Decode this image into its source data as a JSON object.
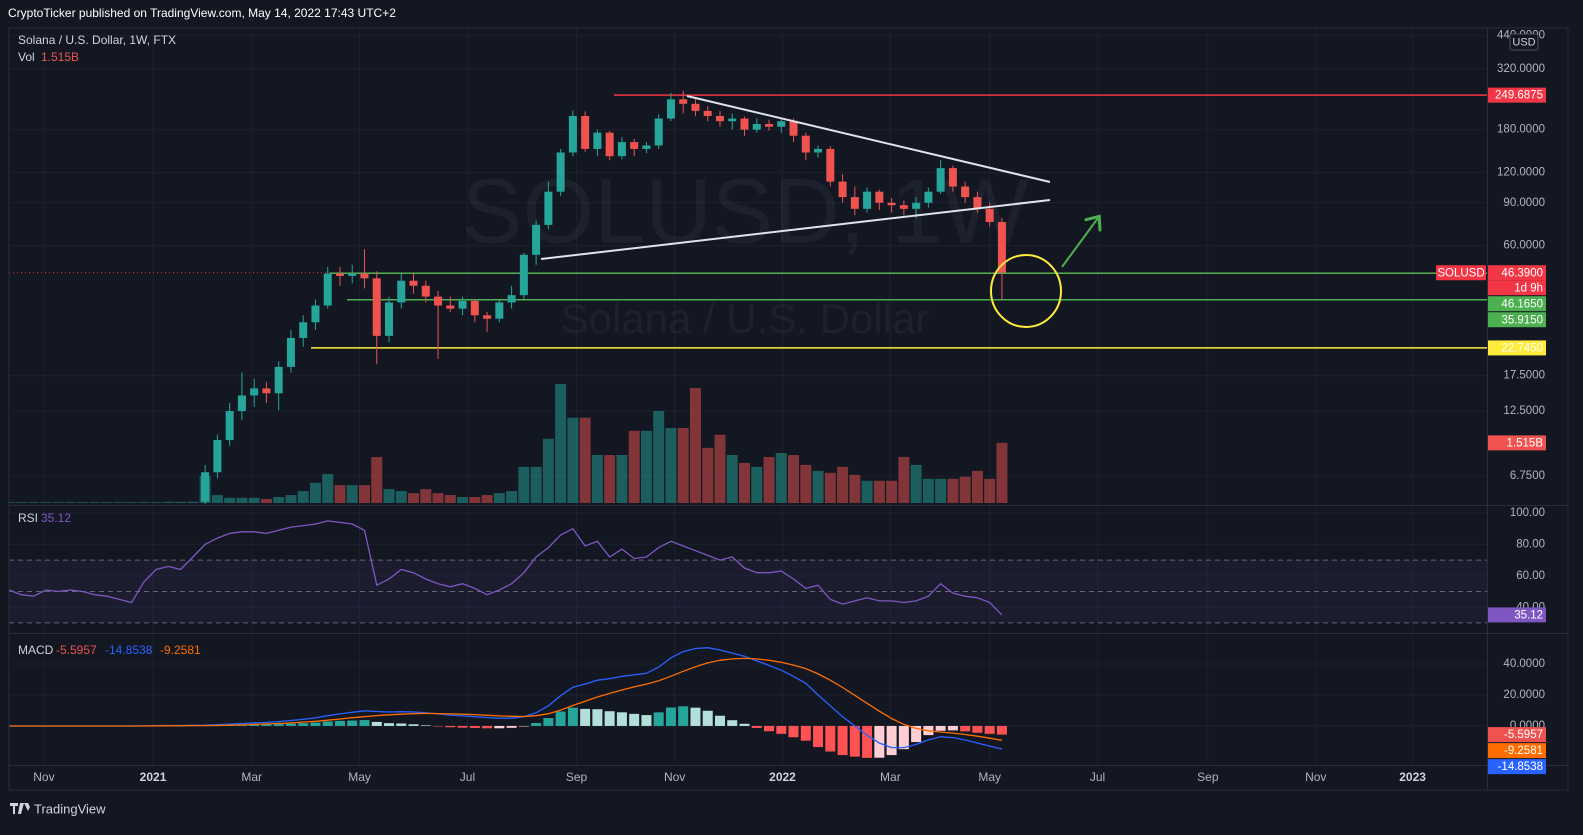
{
  "header": {
    "publisher": "CryptoTicker published on TradingView.com, May 14, 2022 17:43 UTC+2",
    "logo": "TradingView"
  },
  "chart_data": [
    {
      "type": "candlestick",
      "title": "Solana / U.S. Dollar, 1W, FTX",
      "watermark": "SOLUSD, 1W",
      "watermark_subtitle": "Solana / U.S. Dollar",
      "currency": "USD",
      "log_scale": true,
      "grid": true,
      "xlim": [
        0,
        120
      ],
      "xticks": [
        {
          "value": 2.85,
          "label": "Nov"
        },
        {
          "value": 11.75,
          "label": "2021"
        },
        {
          "value": 19.8,
          "label": "Mar"
        },
        {
          "value": 28.6,
          "label": "May"
        },
        {
          "value": 37.4,
          "label": "Jul"
        },
        {
          "value": 46.3,
          "label": "Sep"
        },
        {
          "value": 54.3,
          "label": "Nov"
        },
        {
          "value": 63.1,
          "label": "2022"
        },
        {
          "value": 71.9,
          "label": "Mar"
        },
        {
          "value": 80.0,
          "label": "May"
        },
        {
          "value": 88.8,
          "label": "Jul"
        },
        {
          "value": 97.8,
          "label": "Sep"
        },
        {
          "value": 106.6,
          "label": "Nov"
        },
        {
          "value": 114.5,
          "label": "2023"
        }
      ],
      "ylim": [
        5.23,
        463
      ],
      "yticks": [
        {
          "value": 440,
          "label": "440.0000"
        },
        {
          "value": 320,
          "label": "320.0000"
        },
        {
          "value": 180,
          "label": "180.0000"
        },
        {
          "value": 120,
          "label": "120.0000"
        },
        {
          "value": 90,
          "label": "90.0000"
        },
        {
          "value": 60,
          "label": "60.0000"
        },
        {
          "value": 17.5,
          "label": "17.5000"
        },
        {
          "value": 12.5,
          "label": "12.5000"
        },
        {
          "value": 6.75,
          "label": "6.7500"
        }
      ],
      "up_color": "#26a69a",
      "down_color": "#ef5350",
      "open": [
        null,
        null,
        null,
        null,
        null,
        null,
        null,
        null,
        null,
        null,
        null,
        null,
        null,
        null,
        null,
        null,
        5.3,
        7.0,
        9.5,
        12.5,
        14.5,
        15.5,
        14.8,
        19,
        25,
        29,
        34,
        46,
        45,
        46,
        44,
        25.5,
        35,
        43,
        41,
        37,
        34,
        33,
        35.5,
        31,
        30,
        35,
        37.5,
        55,
        73,
        100,
        145,
        205,
        150,
        175,
        140,
        160,
        150,
        155,
        200,
        240,
        230,
        215,
        205,
        195,
        200,
        180,
        190,
        185,
        195,
        170,
        145,
        150,
        110,
        95,
        85,
        100,
        90,
        88,
        85,
        90,
        100,
        125,
        105,
        95,
        85,
        75
      ],
      "high": [
        null,
        null,
        null,
        null,
        null,
        null,
        null,
        null,
        null,
        null,
        null,
        null,
        null,
        null,
        null,
        null,
        7.5,
        10,
        13.5,
        18,
        17,
        16.5,
        20,
        27,
        31,
        36,
        49,
        49,
        50,
        58,
        47,
        37,
        46,
        46,
        43,
        39,
        37,
        37,
        36,
        32,
        36,
        41,
        56,
        76,
        110,
        150,
        216,
        214,
        180,
        178,
        168,
        165,
        160,
        208,
        255,
        260,
        240,
        225,
        215,
        210,
        204,
        200,
        198,
        202,
        200,
        175,
        155,
        154,
        118,
        105,
        104,
        102,
        94,
        92,
        95,
        104,
        135,
        128,
        110,
        100,
        90,
        78
      ],
      "low": [
        null,
        null,
        null,
        null,
        null,
        null,
        null,
        null,
        null,
        null,
        null,
        null,
        null,
        null,
        null,
        null,
        5.0,
        6.6,
        9,
        11.5,
        13,
        13.5,
        12.6,
        18,
        23,
        27,
        33,
        41,
        42,
        40,
        19.5,
        24,
        33,
        38,
        35,
        20.5,
        32,
        31,
        29,
        26.5,
        29,
        33,
        36,
        50,
        70,
        96,
        140,
        146,
        140,
        135,
        136,
        140,
        144,
        150,
        195,
        210,
        205,
        195,
        185,
        180,
        170,
        175,
        178,
        175,
        160,
        135,
        138,
        105,
        90,
        80,
        82,
        84,
        82,
        80,
        78,
        86,
        98,
        100,
        90,
        82,
        72,
        36
      ],
      "close": [
        null,
        null,
        null,
        null,
        null,
        null,
        null,
        null,
        null,
        null,
        null,
        null,
        null,
        null,
        null,
        null,
        7.0,
        9.5,
        12.5,
        14.5,
        15.5,
        14.8,
        19,
        25,
        29,
        34,
        46,
        45,
        46,
        44,
        25.5,
        35,
        43,
        41,
        37,
        34,
        33,
        35.5,
        31,
        30,
        35,
        37.5,
        55,
        73,
        100,
        145,
        205,
        150,
        175,
        140,
        160,
        150,
        155,
        200,
        240,
        230,
        215,
        205,
        195,
        200,
        180,
        190,
        185,
        195,
        170,
        145,
        150,
        110,
        95,
        85,
        100,
        90,
        88,
        85,
        90,
        100,
        125,
        105,
        95,
        85,
        75,
        46.39
      ],
      "last_price": {
        "symbol": "SOLUSD",
        "value": 46.39,
        "label": "46.3900",
        "countdown": "1d 9h",
        "color": "#f23645"
      },
      "levels": [
        {
          "value": 249.6875,
          "label": "249.6875",
          "color": "#f23645"
        },
        {
          "value": 46.165,
          "label": "46.1650",
          "color": "#4caf50"
        },
        {
          "value": 35.915,
          "label": "35.9150",
          "color": "#4caf50"
        },
        {
          "value": 22.745,
          "label": "22.7450",
          "color": "#ffeb3b"
        }
      ],
      "volume": {
        "name": "Vol",
        "values": [
          0.02,
          0.02,
          0.02,
          0.02,
          0.02,
          0.02,
          0.02,
          0.02,
          0.02,
          0.02,
          0.02,
          0.02,
          0.02,
          0.03,
          0.03,
          0.03,
          0.68,
          0.2,
          0.13,
          0.13,
          0.13,
          0.1,
          0.15,
          0.2,
          0.3,
          0.51,
          0.73,
          0.45,
          0.45,
          0.45,
          1.16,
          0.35,
          0.3,
          0.25,
          0.35,
          0.25,
          0.2,
          0.15,
          0.15,
          0.2,
          0.25,
          0.3,
          0.91,
          0.91,
          1.62,
          3.0,
          2.15,
          2.15,
          1.21,
          1.21,
          1.21,
          1.82,
          1.82,
          2.32,
          1.89,
          1.89,
          2.9,
          1.39,
          1.72,
          1.21,
          1.01,
          0.91,
          1.16,
          1.26,
          1.21,
          0.96,
          0.81,
          0.76,
          0.91,
          0.71,
          0.56,
          0.56,
          0.56,
          1.16,
          0.96,
          0.61,
          0.61,
          0.61,
          0.66,
          0.81,
          0.61,
          1.515
        ],
        "last_label": "1.515B"
      }
    },
    {
      "type": "line",
      "name": "RSI",
      "color": "#7e57c2",
      "grid": true,
      "ylim": [
        25.5,
        100
      ],
      "yticks": [
        {
          "value": 100,
          "label": "100.00"
        },
        {
          "value": 80,
          "label": "80.00"
        },
        {
          "value": 60,
          "label": "60.00"
        },
        {
          "value": 40,
          "label": "40.00"
        }
      ],
      "band_lines": [
        70,
        50,
        30
      ],
      "values": [
        51,
        48,
        47,
        51,
        50,
        51,
        50,
        48,
        47,
        45,
        43,
        56,
        64,
        66,
        64,
        72,
        80,
        84,
        87,
        88,
        88,
        87,
        89,
        91,
        92,
        93,
        95,
        94,
        93,
        89,
        54,
        58,
        64,
        62,
        58,
        55,
        53,
        55,
        52,
        48,
        51,
        55,
        62,
        72,
        78,
        86,
        90,
        79,
        82,
        72,
        77,
        71,
        72,
        78,
        82,
        79,
        76,
        73,
        70,
        72,
        65,
        62,
        62,
        63,
        58,
        52,
        54,
        45,
        42,
        44,
        46,
        44,
        44,
        43,
        44,
        47,
        55,
        49,
        47,
        46,
        43,
        35.12
      ]
    },
    {
      "type": "macd",
      "name": "MACD",
      "grid": true,
      "ylim": [
        -25.2,
        58.7
      ],
      "yticks": [
        {
          "value": 40,
          "label": "40.0000"
        },
        {
          "value": 20,
          "label": "20.0000"
        },
        {
          "value": 0,
          "label": "0.0000"
        }
      ],
      "histogram": {
        "colors": [
          "#26a69a",
          "#b2dfdb",
          "#ffcdd2",
          "#ff5252"
        ],
        "values": [
          0,
          0,
          0,
          0,
          0,
          0,
          0,
          0,
          0,
          0,
          0,
          0.1,
          0.1,
          0.2,
          0.1,
          0.2,
          0.3,
          0.5,
          0.7,
          0.9,
          1.0,
          1.0,
          1.2,
          1.5,
          1.8,
          2.2,
          2.9,
          3.3,
          3.5,
          3.8,
          2.6,
          1.8,
          1.6,
          1.1,
          0.4,
          -0.2,
          -0.8,
          -1.1,
          -1.3,
          -1.5,
          -1.5,
          -1.2,
          -0.1,
          1.9,
          5.1,
          9.3,
          11.8,
          11,
          10.8,
          9.5,
          8.8,
          7.8,
          7,
          8.8,
          11.9,
          12.7,
          11.8,
          9.8,
          6.6,
          3.7,
          1.4,
          -1.3,
          -3.4,
          -5.1,
          -7.3,
          -9.5,
          -13.6,
          -16.5,
          -18.8,
          -19.8,
          -20.6,
          -20.5,
          -18.8,
          -15,
          -10.4,
          -5.9,
          -3.1,
          -2.9,
          -3.5,
          -4.4,
          -5.1,
          -5.5957
        ]
      },
      "macd": {
        "color": "#2962ff",
        "values": [
          0,
          0,
          0,
          0,
          0,
          0,
          0,
          0,
          0,
          0,
          0,
          0.1,
          0.2,
          0.3,
          0.3,
          0.4,
          0.5,
          0.8,
          1.2,
          1.6,
          2.0,
          2.3,
          2.8,
          3.5,
          4.3,
          5.2,
          6.6,
          7.8,
          8.8,
          9.8,
          9.3,
          9.0,
          9.2,
          9.0,
          8.5,
          7.8,
          7.0,
          6.5,
          6.0,
          5.4,
          5.0,
          5.0,
          6.0,
          8.5,
          13,
          19.5,
          25,
          27,
          29.5,
          30.5,
          32,
          33,
          34,
          38,
          44,
          48,
          50,
          50.5,
          49,
          47,
          45,
          42,
          39,
          36,
          32,
          27.5,
          20,
          13,
          6,
          0,
          -6,
          -11,
          -14,
          -14,
          -12,
          -9,
          -7,
          -7.5,
          -9,
          -11,
          -13,
          -14.8538
        ]
      },
      "signal": {
        "color": "#ff6d00",
        "values": [
          0,
          0,
          0,
          0,
          0,
          0,
          0,
          0,
          0,
          0,
          0,
          0,
          0.1,
          0.1,
          0.2,
          0.2,
          0.2,
          0.3,
          0.5,
          0.7,
          1.0,
          1.3,
          1.6,
          2.0,
          2.5,
          3.0,
          3.7,
          4.5,
          5.3,
          6.0,
          6.7,
          7.2,
          7.6,
          7.9,
          8.1,
          8.0,
          7.8,
          7.6,
          7.3,
          6.9,
          6.5,
          6.2,
          6.1,
          6.6,
          7.9,
          10.2,
          13.2,
          16,
          18.7,
          21,
          23.2,
          25.2,
          27,
          29.2,
          32.1,
          35.3,
          38.2,
          40.7,
          42.4,
          43.3,
          43.6,
          43.3,
          42.4,
          41.1,
          39.3,
          37,
          33.6,
          29.5,
          24.8,
          19.8,
          14.6,
          9.5,
          4.8,
          1,
          -1.6,
          -3.1,
          -3.9,
          -4.6,
          -5.5,
          -6.6,
          -7.9,
          -9.2581
        ]
      }
    }
  ]
}
